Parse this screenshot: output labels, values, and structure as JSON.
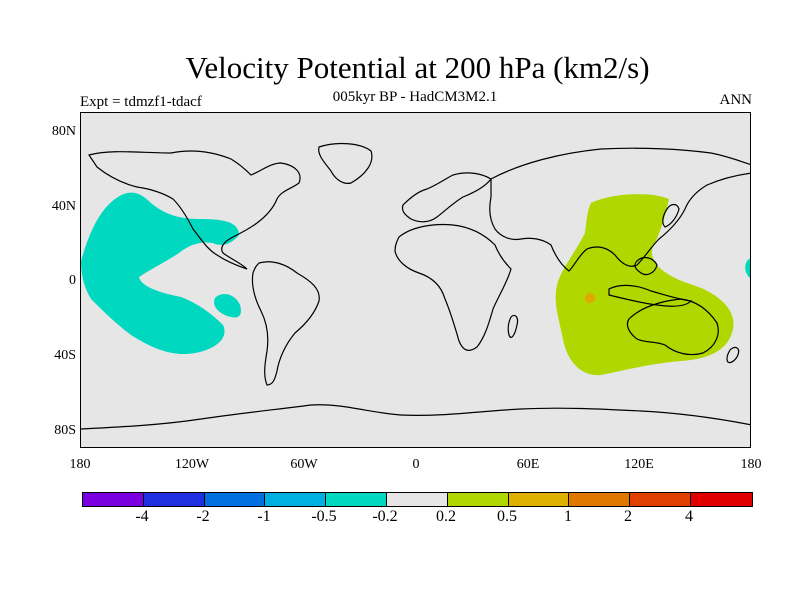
{
  "title": "Velocity Potential at 200 hPa (km2/s)",
  "subtitle": "005kyr BP - HadCM3M2.1",
  "experiment": "Expt = tdmzf1-tdacf",
  "season": "ANN",
  "map": {
    "background_color": "#e6e6e6",
    "land_outline_color": "#000000",
    "lat_labels": [
      "80N",
      "40N",
      "0",
      "40S",
      "80S"
    ],
    "lon_labels": [
      "180",
      "120W",
      "60W",
      "0",
      "60E",
      "120E",
      "180"
    ],
    "negative_region_color": "#00d8c0",
    "positive_region_color": "#b0d800",
    "spot_color": "#e0a800"
  },
  "colorbar": {
    "colors": [
      "#7a00e0",
      "#2030e0",
      "#0070e0",
      "#00b0e0",
      "#00d8c0",
      "#e6e6e6",
      "#b0d800",
      "#e0b000",
      "#e07800",
      "#e04000",
      "#e00000"
    ],
    "labels": [
      "-4",
      "-2",
      "-1",
      "-0.5",
      "-0.2",
      "0.2",
      "0.5",
      "1",
      "2",
      "4"
    ]
  }
}
